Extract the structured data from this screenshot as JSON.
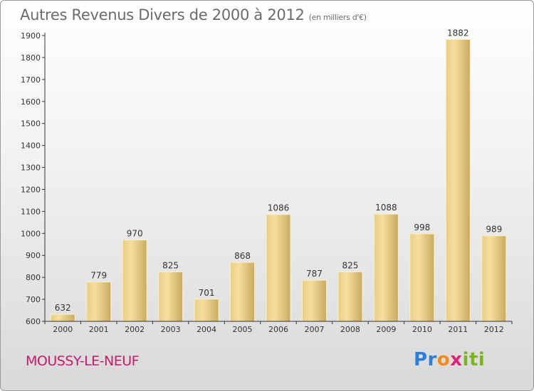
{
  "header": {
    "title": "Autres Revenus Divers de 2000 à 2012",
    "subtitle": "(en milliers d'€)"
  },
  "footer": {
    "commune": "MOUSSY-LE-NEUF",
    "logo_text": "Proxiti"
  },
  "colors": {
    "bar_light": "#f4dc9a",
    "bar_dark": "#c9aa5e",
    "axis": "#333333",
    "commune": "#c41b6c"
  },
  "chart_data": {
    "type": "bar",
    "categories": [
      "2000",
      "2001",
      "2002",
      "2003",
      "2004",
      "2005",
      "2006",
      "2007",
      "2008",
      "2009",
      "2010",
      "2011",
      "2012"
    ],
    "values": [
      632,
      779,
      970,
      825,
      701,
      868,
      1086,
      787,
      825,
      1088,
      998,
      1882,
      989
    ],
    "ylim": [
      600,
      1900
    ],
    "yticks": [
      600,
      700,
      800,
      900,
      1000,
      1100,
      1200,
      1300,
      1400,
      1500,
      1600,
      1700,
      1800,
      1900
    ],
    "title": "Autres Revenus Divers de 2000 à 2012",
    "ylabel": "",
    "xlabel": "",
    "grid": false,
    "legend": "none"
  }
}
